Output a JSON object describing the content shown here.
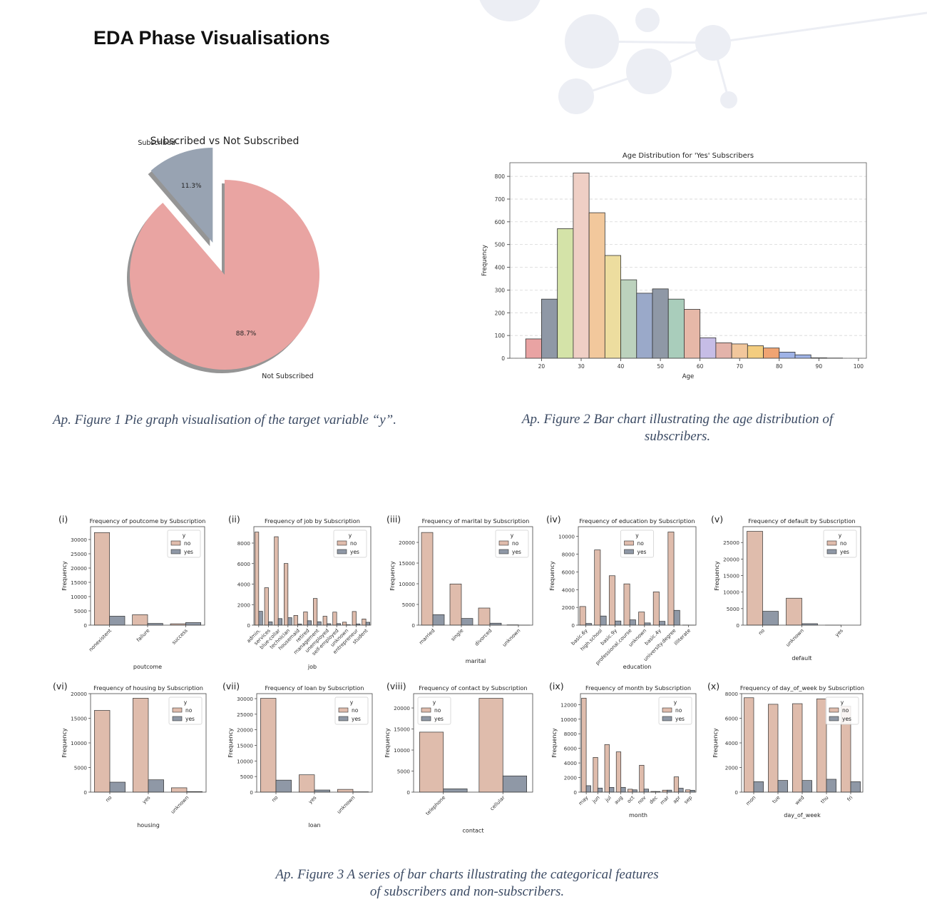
{
  "page": {
    "heading": "EDA Phase Visualisations",
    "captions": {
      "fig1": "Ap. Figure 1 Pie graph visualisation of the target variable “y”.",
      "fig2_line1": "Ap. Figure 2 Bar chart illustrating the age distribution of",
      "fig2_line2": "subscribers.",
      "fig3_line1": "Ap. Figure 3 A series of bar charts illustrating the categorical features",
      "fig3_line2": "of subscribers and non-subscribers."
    },
    "colors": {
      "no": "#dfbcac",
      "yes": "#8f98a6",
      "pie_not": "#e9a4a2",
      "pie_sub": "#98a3b2"
    }
  },
  "chart_data": [
    {
      "id": "pie",
      "type": "pie",
      "title": "Subscribed vs Not Subscribed",
      "labels": [
        "Not Subscribed",
        "Subscribed"
      ],
      "values": [
        88.7,
        11.3
      ],
      "value_labels": [
        "88.7%",
        "11.3%"
      ],
      "colors": [
        "#e9a4a2",
        "#98a3b2"
      ],
      "explode": "Subscribed"
    },
    {
      "id": "age",
      "type": "bar",
      "title": "Age Distribution for 'Yes' Subscribers",
      "xlabel": "Age",
      "ylabel": "Frequency",
      "bin_edges": [
        16,
        20,
        24,
        28,
        32,
        36,
        40,
        44,
        48,
        52,
        56,
        60,
        64,
        68,
        72,
        76,
        80,
        84,
        88,
        92,
        96,
        100
      ],
      "values": [
        85,
        260,
        570,
        815,
        640,
        452,
        345,
        286,
        305,
        260,
        215,
        90,
        68,
        63,
        55,
        45,
        27,
        15,
        2,
        1,
        0
      ],
      "colors": [
        "#e9a3a3",
        "#8f98a6",
        "#d4e3a8",
        "#efcfc5",
        "#f2c89c",
        "#eddd9f",
        "#bcd2bd",
        "#9aa9c9",
        "#8f98a6",
        "#a9cdbb",
        "#e6b8a8",
        "#c6bde6",
        "#e3b3aa",
        "#f2c79c",
        "#f3cd7f",
        "#f0a472",
        "#9fb3e6",
        "#9fb3e6",
        "#cccccc",
        "#cccccc",
        "#cccccc"
      ],
      "x_ticks": [
        20,
        30,
        40,
        50,
        60,
        70,
        80,
        90,
        100
      ],
      "y_ticks": [
        0,
        100,
        200,
        300,
        400,
        500,
        600,
        700,
        800
      ],
      "xlim": [
        12,
        102
      ],
      "ylim": [
        0,
        860
      ],
      "grid": "horizontal dashed"
    },
    {
      "id": "poutcome",
      "type": "bar",
      "roman": "(i)",
      "title": "Frequency of poutcome by Subscription",
      "xlabel": "poutcome",
      "ylabel": "Frequency",
      "categories": [
        "nonexistent",
        "failure",
        "success"
      ],
      "series": [
        {
          "name": "no",
          "values": [
            32422,
            3647,
            479
          ]
        },
        {
          "name": "yes",
          "values": [
            3141,
            605,
            894
          ]
        }
      ],
      "y_ticks": [
        0,
        5000,
        10000,
        15000,
        20000,
        25000,
        30000
      ],
      "ylim": [
        0,
        34500
      ],
      "legend": {
        "title": "y",
        "position": "top-right"
      }
    },
    {
      "id": "job",
      "type": "bar",
      "roman": "(ii)",
      "title": "Frequency of job by Subscription",
      "xlabel": "job",
      "ylabel": "",
      "categories": [
        "admin.",
        "services",
        "blue-collar",
        "technician",
        "housemaid",
        "retired",
        "management",
        "unemployed",
        "self-employed",
        "unknown",
        "entrepreneur",
        "student"
      ],
      "series": [
        {
          "name": "no",
          "values": [
            9070,
            3650,
            8620,
            6010,
            950,
            1290,
            2600,
            870,
            1270,
            290,
            1330,
            600
          ]
        },
        {
          "name": "yes",
          "values": [
            1350,
            320,
            640,
            730,
            110,
            430,
            330,
            140,
            150,
            40,
            120,
            280
          ]
        }
      ],
      "y_ticks": [
        0,
        2000,
        4000,
        6000,
        8000
      ],
      "ylim": [
        0,
        9600
      ],
      "legend": {
        "title": "y",
        "position": "top-right"
      }
    },
    {
      "id": "marital",
      "type": "bar",
      "roman": "(iii)",
      "title": "Frequency of marital by Subscription",
      "xlabel": "marital",
      "ylabel": "Frequency",
      "categories": [
        "married",
        "single",
        "divorced",
        "unknown"
      ],
      "series": [
        {
          "name": "no",
          "values": [
            22396,
            9948,
            4136,
            68
          ]
        },
        {
          "name": "yes",
          "values": [
            2532,
            1620,
            476,
            12
          ]
        }
      ],
      "y_ticks": [
        0,
        5000,
        10000,
        15000,
        20000
      ],
      "ylim": [
        0,
        23800
      ],
      "legend": {
        "title": "y",
        "position": "top-right"
      }
    },
    {
      "id": "education",
      "type": "bar",
      "roman": "(iv)",
      "title": "Frequency of education by Subscription",
      "xlabel": "education",
      "ylabel": "Frequency",
      "categories": [
        "basic.6y",
        "high.school",
        "basic.9y",
        "professional.course",
        "unknown",
        "basic.4y",
        "university.degree",
        "illiterate"
      ],
      "series": [
        {
          "name": "no",
          "values": [
            2100,
            8480,
            5570,
            4650,
            1480,
            3750,
            10500,
            14
          ]
        },
        {
          "name": "yes",
          "values": [
            190,
            1030,
            470,
            600,
            250,
            430,
            1670,
            4
          ]
        }
      ],
      "y_ticks": [
        0,
        2000,
        4000,
        6000,
        8000,
        10000
      ],
      "ylim": [
        0,
        11100
      ],
      "legend": {
        "title": "y",
        "position": "top-center"
      }
    },
    {
      "id": "default",
      "type": "bar",
      "roman": "(v)",
      "title": "Frequency of default by Subscription",
      "xlabel": "default",
      "ylabel": "Frequency",
      "categories": [
        "no",
        "unknown",
        "yes"
      ],
      "series": [
        {
          "name": "no",
          "values": [
            28391,
            8154,
            3
          ]
        },
        {
          "name": "yes",
          "values": [
            4197,
            443,
            0
          ]
        }
      ],
      "y_ticks": [
        0,
        5000,
        10000,
        15000,
        20000,
        25000
      ],
      "ylim": [
        0,
        29800
      ],
      "legend": {
        "title": "y",
        "position": "top-right"
      }
    },
    {
      "id": "housing",
      "type": "bar",
      "roman": "(vi)",
      "title": "Frequency of housing by Subscription",
      "xlabel": "housing",
      "ylabel": "Frequency",
      "categories": [
        "no",
        "yes",
        "unknown"
      ],
      "series": [
        {
          "name": "no",
          "values": [
            16596,
            19069,
            883
          ]
        },
        {
          "name": "yes",
          "values": [
            2026,
            2507,
            107
          ]
        }
      ],
      "y_ticks": [
        0,
        5000,
        10000,
        15000,
        20000
      ],
      "ylim": [
        0,
        20000
      ],
      "legend": {
        "title": "y",
        "position": "top-right"
      }
    },
    {
      "id": "loan",
      "type": "bar",
      "roman": "(vii)",
      "title": "Frequency of loan by Subscription",
      "xlabel": "loan",
      "ylabel": "Frequency",
      "categories": [
        "no",
        "yes",
        "unknown"
      ],
      "series": [
        {
          "name": "no",
          "values": [
            30100,
            5565,
            883
          ]
        },
        {
          "name": "yes",
          "values": [
            3850,
            683,
            107
          ]
        }
      ],
      "y_ticks": [
        0,
        5000,
        10000,
        15000,
        20000,
        25000,
        30000
      ],
      "ylim": [
        0,
        31600
      ],
      "legend": {
        "title": "y",
        "position": "top-right"
      }
    },
    {
      "id": "contact",
      "type": "bar",
      "roman": "(viii)",
      "title": "Frequency of contact by Subscription",
      "xlabel": "contact",
      "ylabel": "Frequency",
      "categories": [
        "telephone",
        "cellular"
      ],
      "series": [
        {
          "name": "no",
          "values": [
            14257,
            22291
          ]
        },
        {
          "name": "yes",
          "values": [
            787,
            3853
          ]
        }
      ],
      "y_ticks": [
        0,
        5000,
        10000,
        15000,
        20000
      ],
      "ylim": [
        0,
        23400
      ],
      "legend": {
        "title": "y",
        "position": "top-left"
      }
    },
    {
      "id": "month",
      "type": "bar",
      "roman": "(ix)",
      "title": "Frequency of month by Subscription",
      "xlabel": "month",
      "ylabel": "Frequency",
      "categories": [
        "may",
        "jun",
        "jul",
        "aug",
        "oct",
        "nov",
        "dec",
        "mar",
        "apr",
        "sep"
      ],
      "series": [
        {
          "name": "no",
          "values": [
            12883,
            4759,
            6525,
            5523,
            403,
            3685,
            93,
            270,
            2093,
            314
          ]
        },
        {
          "name": "yes",
          "values": [
            886,
            559,
            649,
            655,
            315,
            416,
            89,
            276,
            539,
            256
          ]
        }
      ],
      "y_ticks": [
        0,
        2000,
        4000,
        6000,
        8000,
        10000,
        12000
      ],
      "ylim": [
        0,
        13500
      ],
      "legend": {
        "title": "y",
        "position": "top-right"
      }
    },
    {
      "id": "day_of_week",
      "type": "bar",
      "roman": "(x)",
      "title": "Frequency of day_of_week by Subscription",
      "xlabel": "day_of_week",
      "ylabel": "Frequency",
      "categories": [
        "mon",
        "tue",
        "wed",
        "thu",
        "fri"
      ],
      "series": [
        {
          "name": "no",
          "values": [
            7667,
            7137,
            7185,
            7578,
            6981
          ]
        },
        {
          "name": "yes",
          "values": [
            847,
            953,
            949,
            1045,
            846
          ]
        }
      ],
      "y_ticks": [
        0,
        2000,
        4000,
        6000,
        8000
      ],
      "ylim": [
        0,
        8000
      ],
      "legend": {
        "title": "y",
        "position": "top-right"
      }
    }
  ]
}
